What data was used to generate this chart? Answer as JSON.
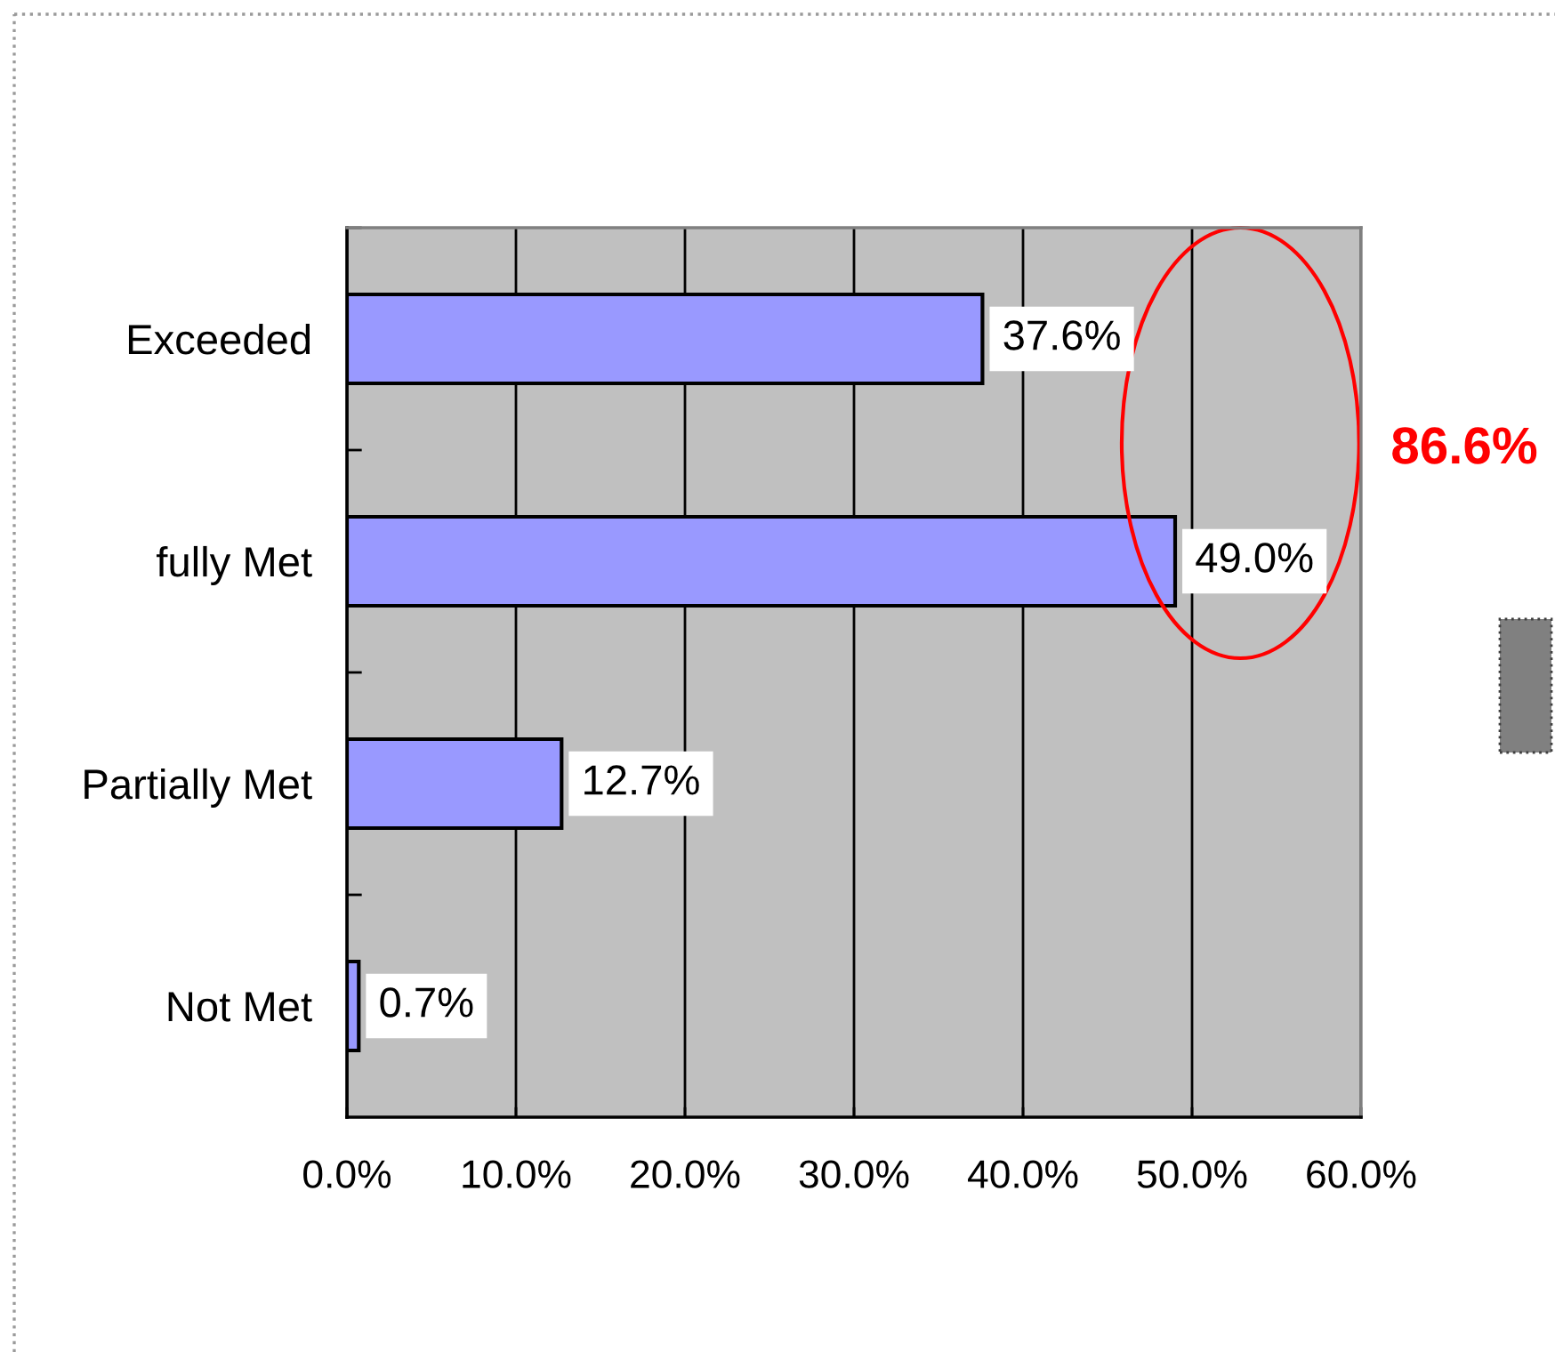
{
  "chart_data": {
    "type": "bar",
    "orientation": "horizontal",
    "categories": [
      "Exceeded",
      "fully Met",
      "Partially Met",
      "Not Met"
    ],
    "values": [
      37.6,
      49.0,
      12.7,
      0.7
    ],
    "color": "#9999ff",
    "value_labels": [
      "37.6%",
      "49.0%",
      "12.7%",
      "0.7%"
    ],
    "xlim": [
      0,
      60
    ],
    "xticks": [
      {
        "value": 0,
        "label": "0.0%"
      },
      {
        "value": 10,
        "label": "10.0%"
      },
      {
        "value": 20,
        "label": "20.0%"
      },
      {
        "value": 30,
        "label": "30.0%"
      },
      {
        "value": 40,
        "label": "40.0%"
      },
      {
        "value": 50,
        "label": "50.0%"
      },
      {
        "value": 60,
        "label": "60.0%"
      }
    ],
    "grid": "x",
    "annotations": [
      "86.6%"
    ]
  }
}
